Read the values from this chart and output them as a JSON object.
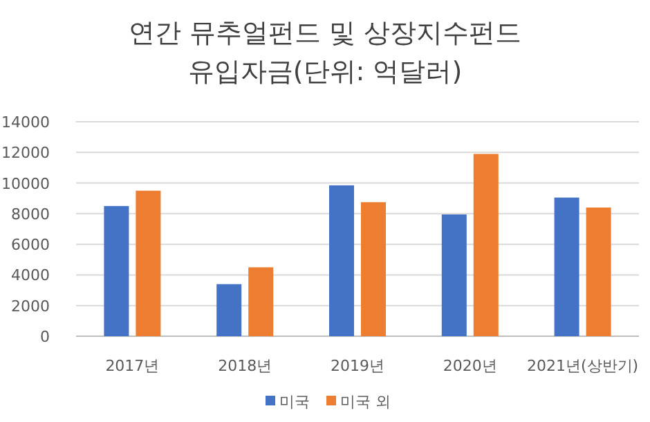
{
  "chart_data": {
    "type": "bar",
    "title": "연간 뮤추얼펀드 및 상장지수펀드 유입자금(단위: 억달러)",
    "categories": [
      "2017년",
      "2018년",
      "2019년",
      "2020년",
      "2021년(상반기)"
    ],
    "series": [
      {
        "name": "미국",
        "color": "#4472c4",
        "values": [
          8500,
          3400,
          9850,
          7950,
          9050
        ]
      },
      {
        "name": "미국 외",
        "color": "#ed7d31",
        "values": [
          9500,
          4500,
          8750,
          11900,
          8400
        ]
      }
    ],
    "ylim": [
      0,
      14000
    ],
    "yticks": [
      0,
      2000,
      4000,
      6000,
      8000,
      10000,
      12000,
      14000
    ],
    "grid": "y",
    "legend": "bottom"
  }
}
